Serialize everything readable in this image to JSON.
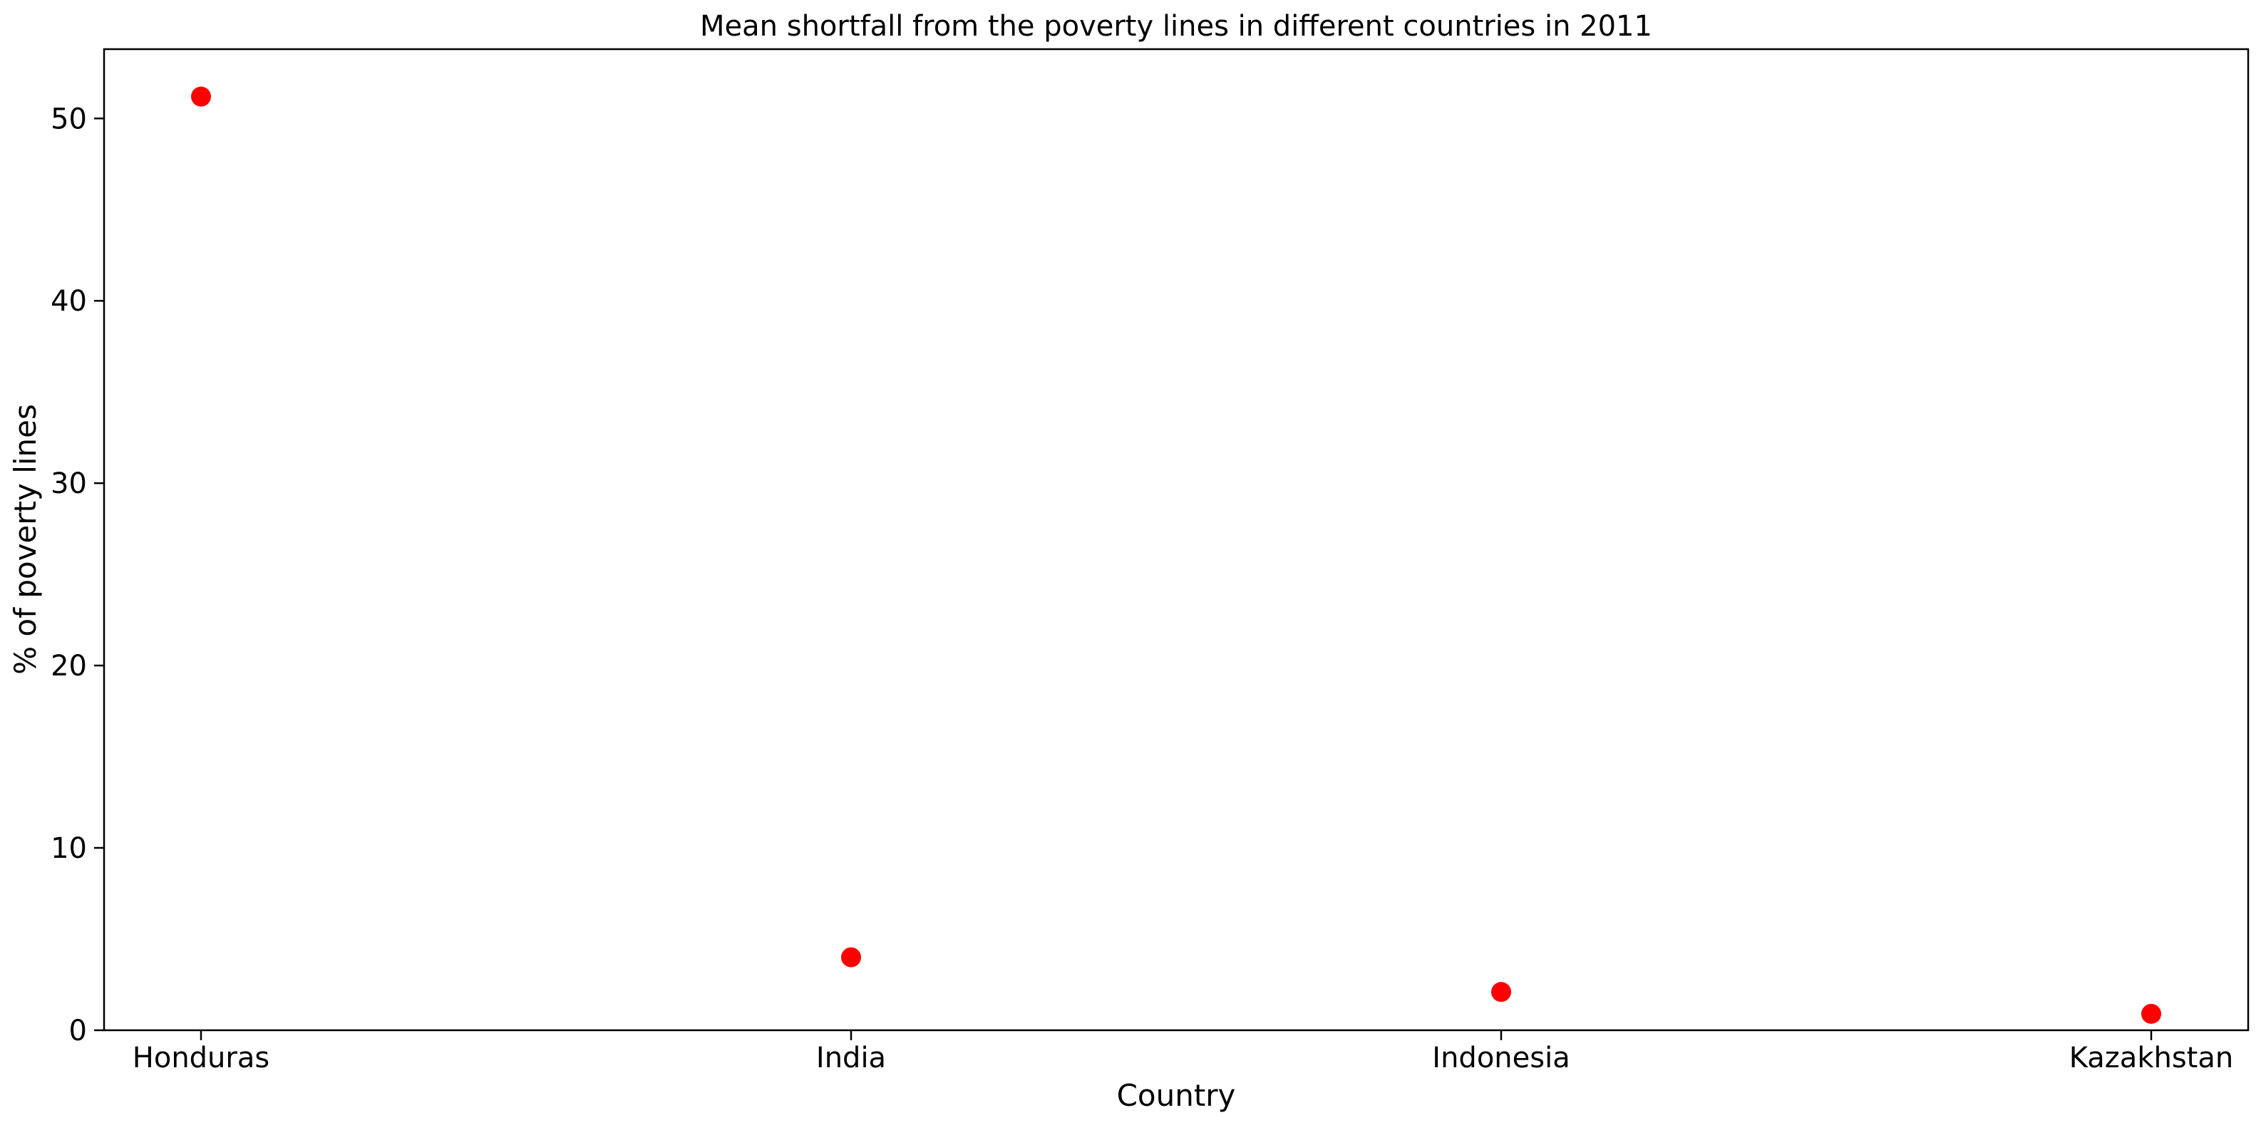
{
  "chart_data": {
    "type": "scatter",
    "title": "Mean shortfall from the poverty lines in different countries in 2011",
    "xlabel": "Country",
    "ylabel": "% of poverty lines",
    "categories": [
      "Honduras",
      "India",
      "Indonesia",
      "Kazakhstan"
    ],
    "series": [
      {
        "values": [
          51.2,
          4.0,
          2.1,
          0.9
        ]
      }
    ],
    "ylim": [
      0,
      53.8
    ],
    "yticks": [
      0,
      10,
      20,
      30,
      40,
      50
    ],
    "grid": false,
    "legend": "none",
    "marker_color": "#ff0000"
  }
}
